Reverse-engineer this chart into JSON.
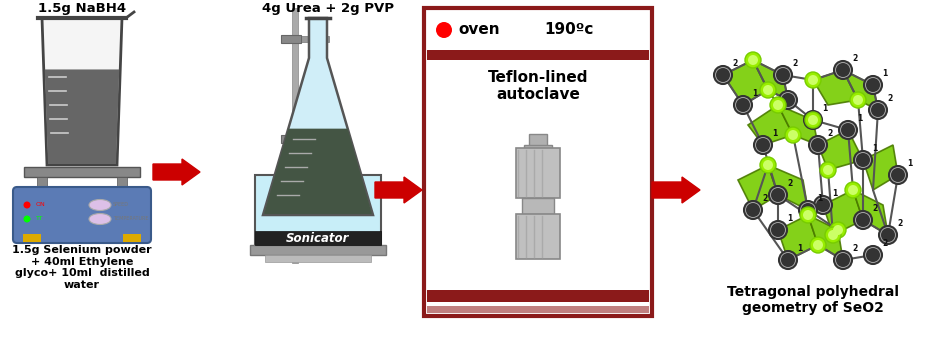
{
  "background": "#ffffff",
  "arrow_color": "#cc0000",
  "step1_label_top": "1.5g NaBH4",
  "step1_label_bottom": "1.5g Selenium powder\n+ 40ml Ethylene\nglyco+ 10ml  distilled\nwater",
  "step2_label_top": "4g Urea + 2g PVP",
  "step2_label_bottom": "Sonicator",
  "step3_label_oven": "oven",
  "step3_label_temp": "190ºc",
  "step3_label_autoclave": "Teflon-lined\nautoclave",
  "step4_label": "Tetragonal polyhedral\ngeometry of SeO2",
  "box_border_color": "#8b1a1a",
  "hotplate_color": "#5b7bb5",
  "crystal_green": "#77cc00",
  "crystal_dark": "#222222"
}
